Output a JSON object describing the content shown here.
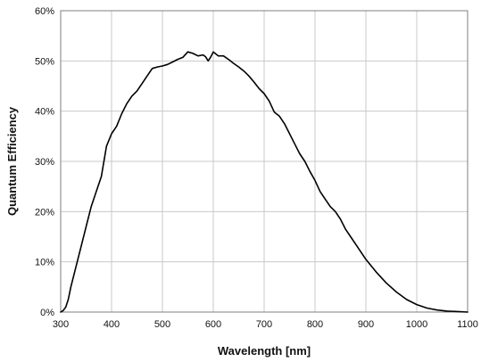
{
  "chart_data": {
    "type": "line",
    "title": "",
    "xlabel": "Wavelength [nm]",
    "ylabel": "Quantum Efficiency",
    "xlim": [
      300,
      1100
    ],
    "ylim": [
      0,
      0.6
    ],
    "x_ticks": [
      300,
      400,
      500,
      600,
      700,
      800,
      900,
      1000,
      1100
    ],
    "x_tick_labels": [
      "300",
      "400",
      "500",
      "600",
      "700",
      "800",
      "900",
      "1000",
      "1100"
    ],
    "y_ticks": [
      0,
      0.1,
      0.2,
      0.3,
      0.4,
      0.5,
      0.6
    ],
    "y_tick_labels": [
      "0%",
      "10%",
      "20%",
      "30%",
      "40%",
      "50%",
      "60%"
    ],
    "grid": true,
    "legend": "none",
    "line_color": "#000000",
    "series": [
      {
        "x": [
          300,
          305,
          310,
          315,
          320,
          330,
          340,
          350,
          360,
          370,
          380,
          390,
          400,
          410,
          420,
          430,
          440,
          450,
          460,
          470,
          480,
          490,
          500,
          510,
          520,
          530,
          540,
          550,
          560,
          570,
          580,
          585,
          590,
          595,
          600,
          610,
          620,
          630,
          640,
          650,
          660,
          670,
          680,
          690,
          700,
          710,
          720,
          730,
          740,
          750,
          760,
          770,
          780,
          790,
          800,
          810,
          820,
          830,
          840,
          850,
          860,
          870,
          880,
          890,
          900,
          920,
          940,
          960,
          980,
          1000,
          1020,
          1040,
          1060,
          1080,
          1100
        ],
        "values": [
          0.0,
          0.003,
          0.01,
          0.025,
          0.05,
          0.09,
          0.13,
          0.17,
          0.21,
          0.24,
          0.27,
          0.33,
          0.355,
          0.37,
          0.395,
          0.415,
          0.43,
          0.44,
          0.455,
          0.47,
          0.485,
          0.488,
          0.49,
          0.493,
          0.498,
          0.503,
          0.507,
          0.518,
          0.515,
          0.51,
          0.512,
          0.508,
          0.5,
          0.508,
          0.518,
          0.51,
          0.51,
          0.503,
          0.495,
          0.488,
          0.48,
          0.47,
          0.458,
          0.445,
          0.435,
          0.42,
          0.398,
          0.39,
          0.375,
          0.355,
          0.335,
          0.315,
          0.3,
          0.28,
          0.262,
          0.24,
          0.225,
          0.21,
          0.2,
          0.185,
          0.165,
          0.15,
          0.135,
          0.12,
          0.105,
          0.08,
          0.058,
          0.04,
          0.025,
          0.015,
          0.008,
          0.004,
          0.002,
          0.001,
          0.0
        ]
      }
    ]
  }
}
